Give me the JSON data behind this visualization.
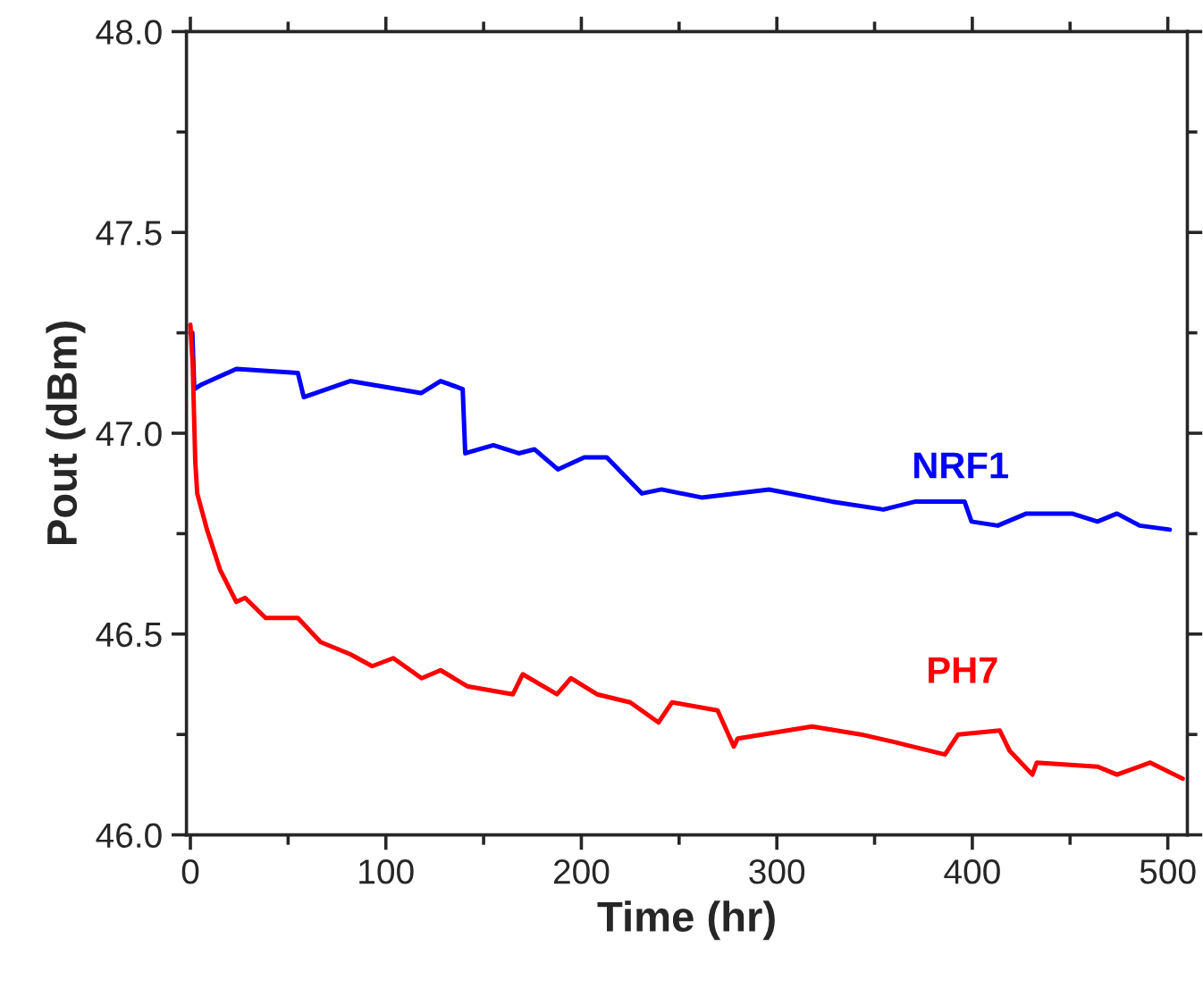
{
  "chart_data": {
    "type": "line",
    "xlabel": "Time (hr)",
    "ylabel": "Pout (dBm)",
    "xlim": [
      -2,
      510
    ],
    "ylim": [
      46.0,
      48.0
    ],
    "xticks": [
      0,
      100,
      200,
      300,
      400,
      500
    ],
    "yticks": [
      {
        "value": 46.0,
        "label": "46.0"
      },
      {
        "value": 46.5,
        "label": "46.5"
      },
      {
        "value": 47.0,
        "label": "47.0"
      },
      {
        "value": 47.5,
        "label": "47.5"
      },
      {
        "value": 48.0,
        "label": "48.0"
      }
    ],
    "grid": false,
    "legend": false,
    "marker": "none",
    "line_style": "solid",
    "series": [
      {
        "name": "NRF1",
        "color": "#0000ff",
        "x": [
          0,
          1,
          2,
          5.2,
          23.5,
          55,
          58,
          81.7,
          118,
          128,
          139.3,
          140.6,
          155,
          168,
          176,
          188,
          201.5,
          213,
          225,
          231,
          241,
          261.5,
          296,
          328,
          354.5,
          371,
          396,
          399.6,
          413,
          427.7,
          451,
          464,
          474,
          485.6,
          501
        ],
        "values": [
          47.25,
          47.25,
          47.11,
          47.12,
          47.16,
          47.15,
          47.09,
          47.13,
          47.1,
          47.13,
          47.11,
          46.95,
          46.97,
          46.95,
          46.96,
          46.91,
          46.94,
          46.94,
          46.88,
          46.85,
          46.86,
          46.84,
          46.86,
          46.83,
          46.81,
          46.83,
          46.83,
          46.78,
          46.77,
          46.8,
          46.8,
          46.78,
          46.8,
          46.77,
          46.76
        ]
      },
      {
        "name": "PH7",
        "color": "#ff0000",
        "x": [
          0,
          1.2,
          2.5,
          3.5,
          8.5,
          15.2,
          23.5,
          28,
          38.5,
          55,
          66.6,
          81.7,
          93,
          103.8,
          118.3,
          128,
          141.6,
          165,
          170,
          187.5,
          194.7,
          208,
          225,
          239.5,
          246.4,
          269.7,
          278,
          280,
          318,
          343,
          361,
          386,
          392.8,
          414,
          419,
          430.7,
          433,
          464,
          474,
          491,
          507.6
        ],
        "values": [
          47.27,
          47.17,
          46.93,
          46.85,
          46.76,
          46.66,
          46.58,
          46.59,
          46.54,
          46.54,
          46.48,
          46.45,
          46.42,
          46.44,
          46.39,
          46.41,
          46.37,
          46.35,
          46.4,
          46.35,
          46.39,
          46.35,
          46.33,
          46.28,
          46.33,
          46.31,
          46.22,
          46.24,
          46.27,
          46.25,
          46.23,
          46.2,
          46.25,
          46.26,
          46.21,
          46.15,
          46.18,
          46.17,
          46.15,
          46.18,
          46.14
        ]
      }
    ]
  }
}
